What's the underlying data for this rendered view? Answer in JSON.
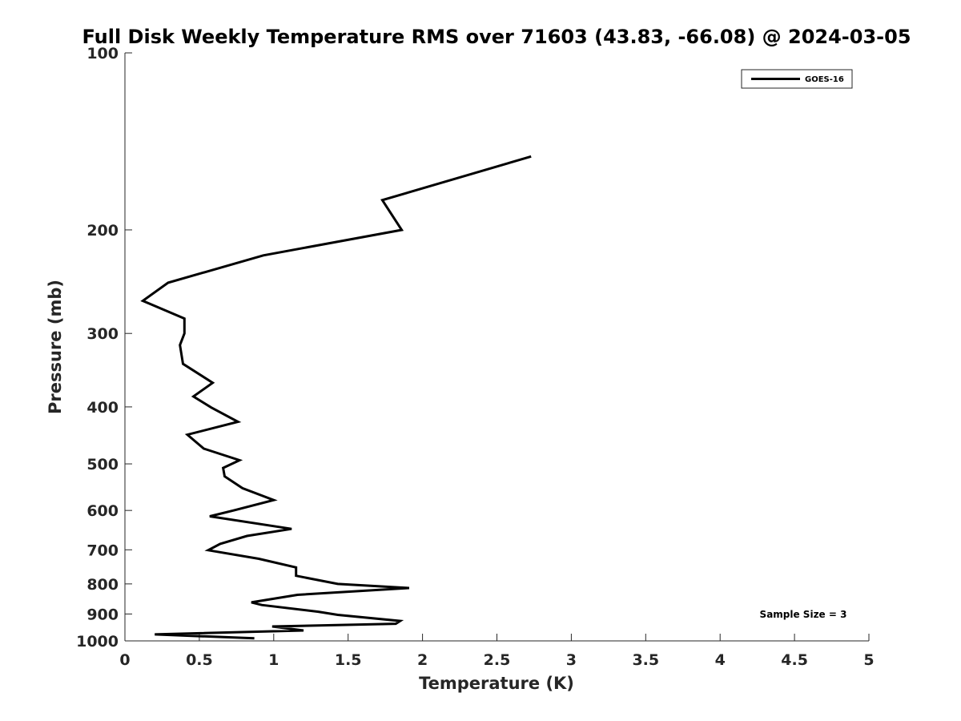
{
  "chart_data": {
    "type": "line",
    "title": "Full Disk Weekly Temperature RMS over 71603 (43.83, -66.08) @ 2024-03-05",
    "xlabel": "Temperature (K)",
    "ylabel": "Pressure (mb)",
    "xlim": [
      0,
      5
    ],
    "ylim": [
      100,
      1000
    ],
    "y_scale": "log",
    "y_reversed": true,
    "x_ticks": [
      "0",
      "0.5",
      "1",
      "1.5",
      "2",
      "2.5",
      "3",
      "3.5",
      "4",
      "4.5",
      "5"
    ],
    "y_ticks": [
      "100",
      "200",
      "300",
      "400",
      "500",
      "600",
      "700",
      "800",
      "900",
      "1000"
    ],
    "grid": false,
    "legend_position": "top-right",
    "annotation": "Sample Size = 3",
    "series": [
      {
        "name": "GOES-16",
        "color": "#000000",
        "points": [
          [
            2.73,
            150
          ],
          [
            1.73,
            178
          ],
          [
            1.86,
            200
          ],
          [
            0.93,
            221
          ],
          [
            0.29,
            246
          ],
          [
            0.12,
            264
          ],
          [
            0.4,
            283
          ],
          [
            0.4,
            300
          ],
          [
            0.37,
            314
          ],
          [
            0.39,
            338
          ],
          [
            0.59,
            364
          ],
          [
            0.46,
            384
          ],
          [
            0.58,
            401
          ],
          [
            0.76,
            424
          ],
          [
            0.42,
            446
          ],
          [
            0.53,
            471
          ],
          [
            0.77,
            493
          ],
          [
            0.66,
            508
          ],
          [
            0.67,
            525
          ],
          [
            0.79,
            550
          ],
          [
            1.0,
            576
          ],
          [
            0.73,
            600
          ],
          [
            0.57,
            614
          ],
          [
            1.12,
            645
          ],
          [
            0.82,
            663
          ],
          [
            0.64,
            684
          ],
          [
            0.56,
            701
          ],
          [
            0.9,
            725
          ],
          [
            1.15,
            750
          ],
          [
            1.15,
            775
          ],
          [
            1.43,
            800
          ],
          [
            1.91,
            813
          ],
          [
            1.16,
            835
          ],
          [
            0.85,
            860
          ],
          [
            0.92,
            869
          ],
          [
            1.3,
            892
          ],
          [
            1.43,
            903
          ],
          [
            1.85,
            925
          ],
          [
            1.82,
            935
          ],
          [
            0.99,
            945
          ],
          [
            1.2,
            960
          ],
          [
            0.2,
            975
          ],
          [
            0.87,
            990
          ]
        ]
      }
    ]
  }
}
